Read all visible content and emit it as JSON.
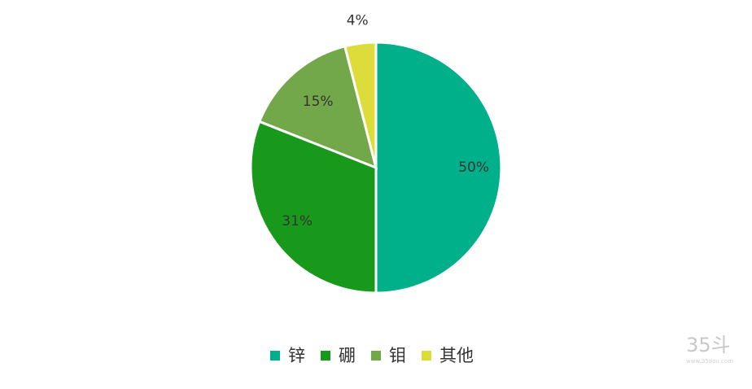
{
  "chart_data": {
    "type": "pie",
    "title": "",
    "start_angle_deg": 0,
    "direction": "clockwise",
    "legend_position": "bottom",
    "slices": [
      {
        "name": "锌",
        "value": 50,
        "label": "50%",
        "color": "#00b08b"
      },
      {
        "name": "硼",
        "value": 31,
        "label": "31%",
        "color": "#18991c"
      },
      {
        "name": "钼",
        "value": 15,
        "label": "15%",
        "color": "#72a84a"
      },
      {
        "name": "其他",
        "value": 4,
        "label": "4%",
        "color": "#dcdc3a"
      }
    ]
  },
  "watermark": {
    "main": "35斗",
    "sub": "www.35dou.com"
  }
}
